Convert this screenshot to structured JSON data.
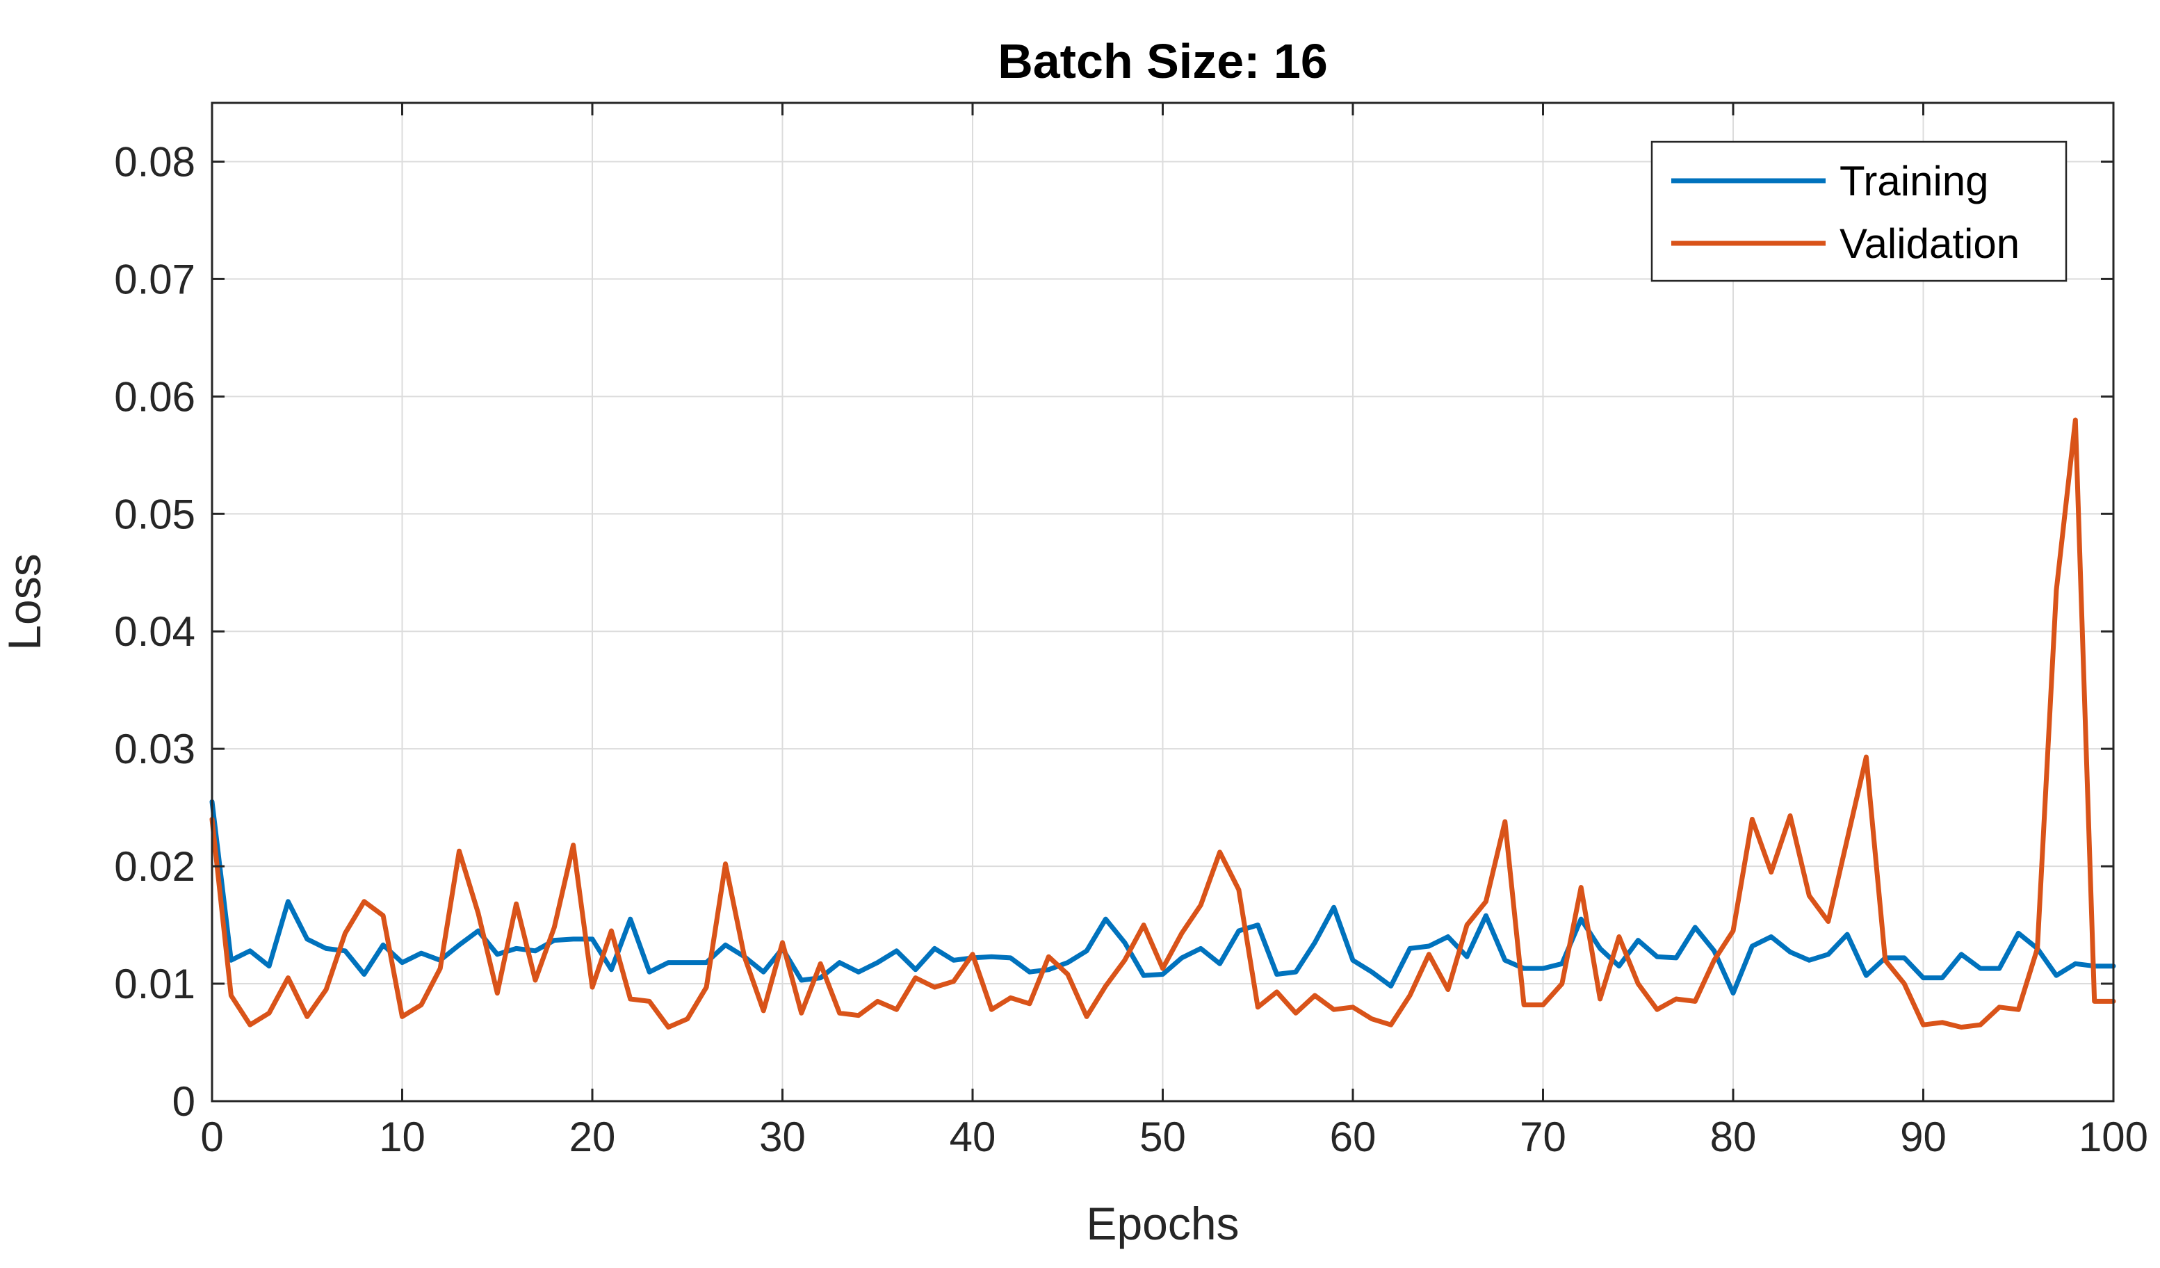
{
  "chart_data": {
    "type": "line",
    "title": "Batch Size: 16",
    "xlabel": "Epochs",
    "ylabel": "Loss",
    "xlim": [
      0,
      100
    ],
    "ylim": [
      0,
      0.085
    ],
    "xticks": [
      0,
      10,
      20,
      30,
      40,
      50,
      60,
      70,
      80,
      90,
      100
    ],
    "xtick_labels": [
      "0",
      "10",
      "20",
      "30",
      "40",
      "50",
      "60",
      "70",
      "80",
      "90",
      "100"
    ],
    "yticks": [
      0,
      0.01,
      0.02,
      0.03,
      0.04,
      0.05,
      0.06,
      0.07,
      0.08
    ],
    "ytick_labels": [
      "0",
      "0.01",
      "0.02",
      "0.03",
      "0.04",
      "0.05",
      "0.06",
      "0.07",
      "0.08"
    ],
    "grid": true,
    "legend_position": "top-right",
    "x": [
      0,
      1,
      2,
      3,
      4,
      5,
      6,
      7,
      8,
      9,
      10,
      11,
      12,
      13,
      14,
      15,
      16,
      17,
      18,
      19,
      20,
      21,
      22,
      23,
      24,
      25,
      26,
      27,
      28,
      29,
      30,
      31,
      32,
      33,
      34,
      35,
      36,
      37,
      38,
      39,
      40,
      41,
      42,
      43,
      44,
      45,
      46,
      47,
      48,
      49,
      50,
      51,
      52,
      53,
      54,
      55,
      56,
      57,
      58,
      59,
      60,
      61,
      62,
      63,
      64,
      65,
      66,
      67,
      68,
      69,
      70,
      71,
      72,
      73,
      74,
      75,
      76,
      77,
      78,
      79,
      80,
      81,
      82,
      83,
      84,
      85,
      86,
      87,
      88,
      89,
      90,
      91,
      92,
      93,
      94,
      95,
      96,
      97,
      98,
      99,
      100
    ],
    "series": [
      {
        "name": "Training",
        "color": "#0072BD",
        "values": [
          0.0255,
          0.012,
          0.0128,
          0.0115,
          0.017,
          0.0138,
          0.013,
          0.0128,
          0.0108,
          0.0133,
          0.0118,
          0.0126,
          0.012,
          0.0133,
          0.0145,
          0.0125,
          0.013,
          0.0128,
          0.0137,
          0.0138,
          0.0138,
          0.0112,
          0.0155,
          0.011,
          0.0118,
          0.0118,
          0.0118,
          0.0133,
          0.0123,
          0.011,
          0.013,
          0.0103,
          0.0105,
          0.0118,
          0.011,
          0.0118,
          0.0128,
          0.0112,
          0.013,
          0.012,
          0.0122,
          0.0123,
          0.0122,
          0.011,
          0.0112,
          0.0118,
          0.0128,
          0.0155,
          0.0135,
          0.0107,
          0.0108,
          0.0122,
          0.013,
          0.0117,
          0.0145,
          0.015,
          0.0108,
          0.011,
          0.0135,
          0.0165,
          0.012,
          0.011,
          0.0098,
          0.013,
          0.0132,
          0.014,
          0.0123,
          0.0158,
          0.012,
          0.0113,
          0.0113,
          0.0117,
          0.0155,
          0.013,
          0.0115,
          0.0137,
          0.0123,
          0.0122,
          0.0148,
          0.0128,
          0.0092,
          0.0132,
          0.014,
          0.0127,
          0.012,
          0.0125,
          0.0142,
          0.0107,
          0.0122,
          0.0122,
          0.0105,
          0.0105,
          0.0125,
          0.0113,
          0.0113,
          0.0143,
          0.013,
          0.0107,
          0.0117,
          0.0115,
          0.0115
        ]
      },
      {
        "name": "Validation",
        "color": "#D95319",
        "values": [
          0.024,
          0.009,
          0.0065,
          0.0075,
          0.0105,
          0.0072,
          0.0095,
          0.0143,
          0.017,
          0.0158,
          0.0072,
          0.0082,
          0.0113,
          0.0213,
          0.016,
          0.0092,
          0.0168,
          0.0103,
          0.0148,
          0.0218,
          0.0097,
          0.0145,
          0.0087,
          0.0085,
          0.0063,
          0.007,
          0.0097,
          0.0202,
          0.0123,
          0.0077,
          0.0135,
          0.0075,
          0.0117,
          0.0075,
          0.0073,
          0.0085,
          0.0078,
          0.0105,
          0.0097,
          0.0102,
          0.0125,
          0.0078,
          0.0088,
          0.0083,
          0.0123,
          0.0108,
          0.0072,
          0.0098,
          0.012,
          0.015,
          0.0113,
          0.0143,
          0.0167,
          0.0212,
          0.018,
          0.008,
          0.0093,
          0.0075,
          0.009,
          0.0078,
          0.008,
          0.007,
          0.0065,
          0.009,
          0.0125,
          0.0095,
          0.015,
          0.017,
          0.0238,
          0.0082,
          0.0082,
          0.01,
          0.0182,
          0.0087,
          0.014,
          0.01,
          0.0078,
          0.0087,
          0.0085,
          0.012,
          0.0145,
          0.024,
          0.0195,
          0.0243,
          0.0175,
          0.0153,
          0.0223,
          0.0293,
          0.012,
          0.01,
          0.0065,
          0.0067,
          0.0063,
          0.0065,
          0.008,
          0.0078,
          0.013,
          0.0435,
          0.058,
          0.0085,
          0.0085
        ]
      }
    ]
  }
}
